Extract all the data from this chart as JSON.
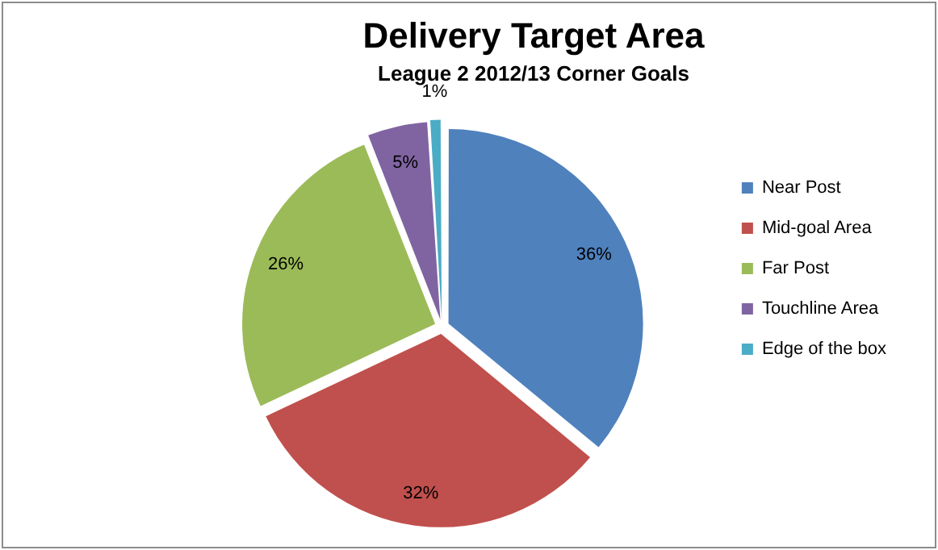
{
  "chart_data": {
    "type": "pie",
    "title": "Delivery Target Area",
    "subtitle": "League 2 2012/13 Corner Goals",
    "categories": [
      "Near Post",
      "Mid-goal Area",
      "Far Post",
      "Touchline Area",
      "Edge of the box"
    ],
    "values": [
      36,
      32,
      26,
      5,
      1
    ],
    "colors": [
      "#4f81bd",
      "#c0504d",
      "#9bbb59",
      "#8064a2",
      "#4bacc6"
    ],
    "value_labels": [
      "36%",
      "32%",
      "26%",
      "5%",
      "1%"
    ],
    "legend": "right"
  }
}
